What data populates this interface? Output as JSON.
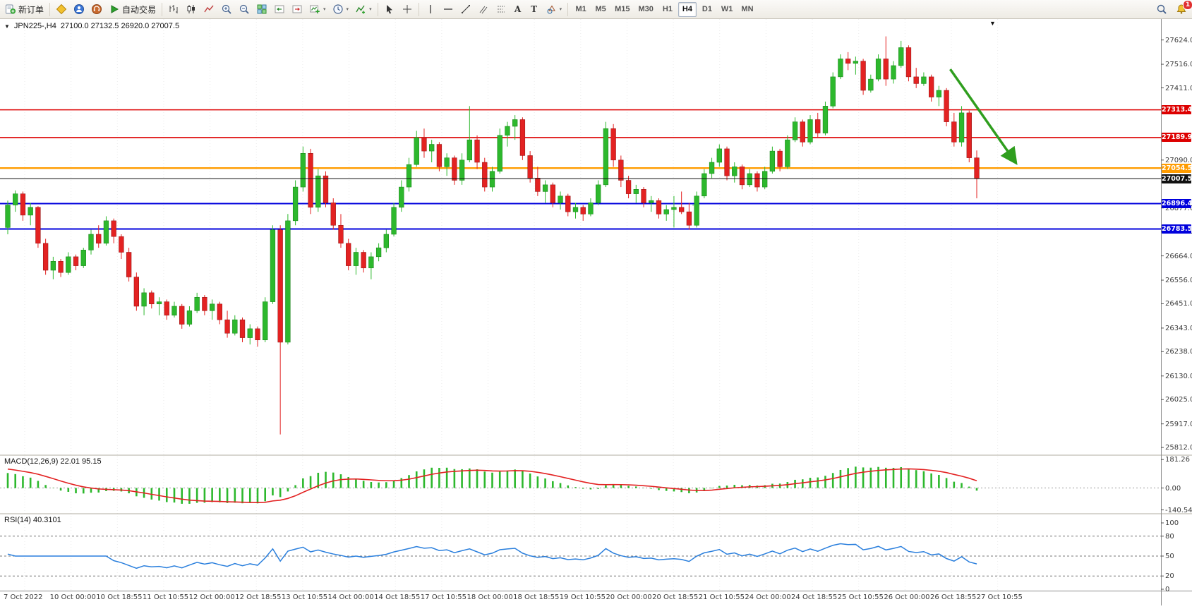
{
  "glyphs": {
    "caret": "▾",
    "collapse_arrow": "▼",
    "text_tool": "A",
    "label_tool": "T"
  },
  "toolbar": {
    "new_order_label": "新订单",
    "auto_trading_label": "自动交易",
    "timeframes": [
      "M1",
      "M5",
      "M15",
      "M30",
      "H1",
      "H4",
      "D1",
      "W1",
      "MN"
    ],
    "active_timeframe": "H4",
    "notification_badge": "1"
  },
  "chart": {
    "symbol_period": "JPN225-,H4",
    "ohlc": "27100.0 27132.5 26920.0 27007.5",
    "axis": {
      "price_max": 27717,
      "price_min": 25781,
      "scale_labels": [
        "27624.0",
        "27516.0",
        "27411.0",
        "27090.0",
        "26877.0",
        "26771.0",
        "26664.0",
        "26556.0",
        "26451.0",
        "26343.0",
        "26238.0",
        "26130.0",
        "26025.0",
        "25917.0",
        "25812.0"
      ],
      "time_labels": [
        "7 Oct 2022",
        "10 Oct 00:00",
        "10 Oct 18:55",
        "11 Oct 10:55",
        "12 Oct 00:00",
        "12 Oct 18:55",
        "13 Oct 10:55",
        "14 Oct 00:00",
        "14 Oct 18:55",
        "17 Oct 10:55",
        "18 Oct 00:00",
        "18 Oct 18:55",
        "19 Oct 10:55",
        "20 Oct 00:00",
        "20 Oct 18:55",
        "21 Oct 10:55",
        "24 Oct 00:00",
        "24 Oct 18:55",
        "25 Oct 10:55",
        "26 Oct 00:00",
        "26 Oct 18:55",
        "27 Oct 10:55"
      ]
    },
    "hlines": [
      {
        "price": 27313.4,
        "label": "27313.4",
        "color": "#dd0000",
        "width": 1.6
      },
      {
        "price": 27189.9,
        "label": "27189.9",
        "color": "#dd0000",
        "width": 1.6
      },
      {
        "price": 27054.5,
        "label": "27054.5",
        "color": "#ff9c00",
        "width": 2.4
      },
      {
        "price": 26896.4,
        "label": "26896.4",
        "color": "#0000dd",
        "width": 2
      },
      {
        "price": 26783.5,
        "label": "26783.5",
        "color": "#0000dd",
        "width": 2
      }
    ],
    "bid_line": {
      "price": 27007.5,
      "label": "27007.5",
      "color": "#111111"
    },
    "arrow": {
      "from_bar": 124.5,
      "from_price": 27494,
      "to_bar": 133,
      "to_price": 27086,
      "color": "#2f9e1e"
    },
    "cross_marker": {
      "bar": 91,
      "price": 26890,
      "color": "#2db82d"
    }
  },
  "indicators": {
    "macd": {
      "label": "MACD(12,26,9) 22.01 95.15",
      "scale_max": 181.26,
      "scale_min": -140.54,
      "scale_labels": [
        "181.26",
        "0.00",
        "-140.54"
      ],
      "histogram_color": "#2db82d",
      "signal_color": "#e32222"
    },
    "rsi": {
      "label": "RSI(14) 40.3101",
      "scale_labels": [
        "100",
        "80",
        "50",
        "20",
        "0"
      ],
      "levels": [
        80,
        50,
        20
      ],
      "line_color": "#2a7fdd"
    }
  },
  "chart_data": {
    "type": "candlestick",
    "symbol": "JPN225-",
    "period": "H4",
    "up_color": "#2db82d",
    "down_color": "#e32222",
    "ohlc_format": [
      "open",
      "high",
      "low",
      "close"
    ],
    "candles": [
      [
        26790,
        26910,
        26760,
        26890
      ],
      [
        26890,
        26955,
        26860,
        26940
      ],
      [
        26940,
        26950,
        26820,
        26845
      ],
      [
        26845,
        26900,
        26800,
        26880
      ],
      [
        26880,
        26885,
        26700,
        26720
      ],
      [
        26720,
        26740,
        26580,
        26600
      ],
      [
        26600,
        26660,
        26560,
        26640
      ],
      [
        26640,
        26650,
        26570,
        26590
      ],
      [
        26590,
        26680,
        26580,
        26660
      ],
      [
        26660,
        26670,
        26600,
        26620
      ],
      [
        26620,
        26700,
        26610,
        26690
      ],
      [
        26690,
        26780,
        26670,
        26760
      ],
      [
        26760,
        26800,
        26700,
        26720
      ],
      [
        26720,
        26840,
        26710,
        26820
      ],
      [
        26820,
        26830,
        26720,
        26750
      ],
      [
        26750,
        26760,
        26650,
        26680
      ],
      [
        26680,
        26700,
        26550,
        26570
      ],
      [
        26570,
        26590,
        26420,
        26440
      ],
      [
        26440,
        26520,
        26400,
        26500
      ],
      [
        26500,
        26510,
        26430,
        26450
      ],
      [
        26450,
        26480,
        26400,
        26460
      ],
      [
        26460,
        26470,
        26380,
        26400
      ],
      [
        26400,
        26460,
        26390,
        26440
      ],
      [
        26440,
        26450,
        26340,
        26360
      ],
      [
        26360,
        26440,
        26350,
        26420
      ],
      [
        26420,
        26500,
        26410,
        26480
      ],
      [
        26480,
        26490,
        26400,
        26420
      ],
      [
        26420,
        26470,
        26380,
        26450
      ],
      [
        26450,
        26460,
        26360,
        26380
      ],
      [
        26380,
        26420,
        26300,
        26320
      ],
      [
        26320,
        26400,
        26310,
        26380
      ],
      [
        26380,
        26390,
        26280,
        26300
      ],
      [
        26300,
        26360,
        26270,
        26340
      ],
      [
        26340,
        26350,
        26260,
        26290
      ],
      [
        26290,
        26480,
        26280,
        26460
      ],
      [
        26460,
        26800,
        26450,
        26780
      ],
      [
        26780,
        26800,
        25870,
        26280
      ],
      [
        26280,
        26850,
        26270,
        26820
      ],
      [
        26820,
        27000,
        26800,
        26970
      ],
      [
        26970,
        27150,
        26950,
        27120
      ],
      [
        27120,
        27140,
        26850,
        26880
      ],
      [
        26880,
        27050,
        26860,
        27020
      ],
      [
        27020,
        27040,
        26880,
        26900
      ],
      [
        26900,
        26920,
        26780,
        26800
      ],
      [
        26800,
        26850,
        26700,
        26720
      ],
      [
        26720,
        26740,
        26600,
        26620
      ],
      [
        26620,
        26700,
        26580,
        26680
      ],
      [
        26680,
        26690,
        26590,
        26610
      ],
      [
        26610,
        26680,
        26560,
        26660
      ],
      [
        26660,
        26720,
        26640,
        26700
      ],
      [
        26700,
        26780,
        26680,
        26760
      ],
      [
        26760,
        26900,
        26750,
        26880
      ],
      [
        26880,
        27000,
        26860,
        26970
      ],
      [
        26970,
        27100,
        26950,
        27070
      ],
      [
        27070,
        27220,
        27060,
        27190
      ],
      [
        27190,
        27230,
        27100,
        27130
      ],
      [
        27130,
        27180,
        27080,
        27160
      ],
      [
        27160,
        27170,
        27040,
        27060
      ],
      [
        27060,
        27120,
        27020,
        27100
      ],
      [
        27100,
        27110,
        26980,
        27000
      ],
      [
        27000,
        27120,
        26980,
        27090
      ],
      [
        27090,
        27330,
        27080,
        27180
      ],
      [
        27180,
        27200,
        27050,
        27080
      ],
      [
        27080,
        27100,
        26950,
        26970
      ],
      [
        26970,
        27060,
        26950,
        27040
      ],
      [
        27040,
        27230,
        27030,
        27200
      ],
      [
        27200,
        27260,
        27150,
        27240
      ],
      [
        27240,
        27290,
        27180,
        27270
      ],
      [
        27270,
        27280,
        27090,
        27110
      ],
      [
        27110,
        27130,
        26990,
        27010
      ],
      [
        27010,
        27060,
        26930,
        26950
      ],
      [
        26950,
        27000,
        26900,
        26980
      ],
      [
        26980,
        26990,
        26880,
        26900
      ],
      [
        26900,
        26950,
        26870,
        26930
      ],
      [
        26930,
        26940,
        26840,
        26860
      ],
      [
        26860,
        26900,
        26830,
        26880
      ],
      [
        26880,
        26890,
        26820,
        26850
      ],
      [
        26850,
        26920,
        26840,
        26900
      ],
      [
        26900,
        27000,
        26890,
        26980
      ],
      [
        26980,
        27260,
        26970,
        27230
      ],
      [
        27230,
        27250,
        27060,
        27090
      ],
      [
        27090,
        27110,
        26970,
        27000
      ],
      [
        27000,
        27020,
        26920,
        26940
      ],
      [
        26940,
        26980,
        26900,
        26960
      ],
      [
        26960,
        26970,
        26880,
        26900
      ],
      [
        26900,
        26930,
        26860,
        26910
      ],
      [
        26910,
        26920,
        26830,
        26850
      ],
      [
        26850,
        26890,
        26820,
        26870
      ],
      [
        26870,
        26930,
        26790,
        26880
      ],
      [
        26880,
        26950,
        26850,
        26860
      ],
      [
        26860,
        26900,
        26780,
        26800
      ],
      [
        26800,
        26950,
        26790,
        26930
      ],
      [
        26930,
        27050,
        26920,
        27030
      ],
      [
        27030,
        27100,
        27010,
        27080
      ],
      [
        27080,
        27160,
        27060,
        27140
      ],
      [
        27140,
        27150,
        27000,
        27020
      ],
      [
        27020,
        27080,
        26990,
        27060
      ],
      [
        27060,
        27070,
        26960,
        26980
      ],
      [
        26980,
        27050,
        26970,
        27030
      ],
      [
        27030,
        27040,
        26950,
        26970
      ],
      [
        26970,
        27060,
        26960,
        27040
      ],
      [
        27040,
        27150,
        27030,
        27130
      ],
      [
        27130,
        27140,
        27040,
        27060
      ],
      [
        27060,
        27200,
        27050,
        27180
      ],
      [
        27180,
        27280,
        27170,
        27260
      ],
      [
        27260,
        27270,
        27150,
        27170
      ],
      [
        27170,
        27290,
        27160,
        27270
      ],
      [
        27270,
        27300,
        27190,
        27210
      ],
      [
        27210,
        27350,
        27200,
        27330
      ],
      [
        27330,
        27480,
        27320,
        27460
      ],
      [
        27460,
        27560,
        27450,
        27540
      ],
      [
        27540,
        27570,
        27490,
        27520
      ],
      [
        27520,
        27550,
        27470,
        27530
      ],
      [
        27530,
        27540,
        27380,
        27400
      ],
      [
        27400,
        27470,
        27390,
        27450
      ],
      [
        27450,
        27560,
        27440,
        27540
      ],
      [
        27540,
        27640,
        27420,
        27450
      ],
      [
        27450,
        27530,
        27430,
        27510
      ],
      [
        27510,
        27620,
        27500,
        27590
      ],
      [
        27590,
        27600,
        27440,
        27460
      ],
      [
        27460,
        27500,
        27410,
        27430
      ],
      [
        27430,
        27480,
        27420,
        27460
      ],
      [
        27460,
        27470,
        27350,
        27370
      ],
      [
        27370,
        27420,
        27330,
        27400
      ],
      [
        27400,
        27410,
        27240,
        27260
      ],
      [
        27260,
        27300,
        27150,
        27170
      ],
      [
        27170,
        27330,
        27150,
        27300
      ],
      [
        27300,
        27310,
        27080,
        27100
      ],
      [
        27100,
        27132.5,
        26920,
        27007.5
      ]
    ]
  }
}
